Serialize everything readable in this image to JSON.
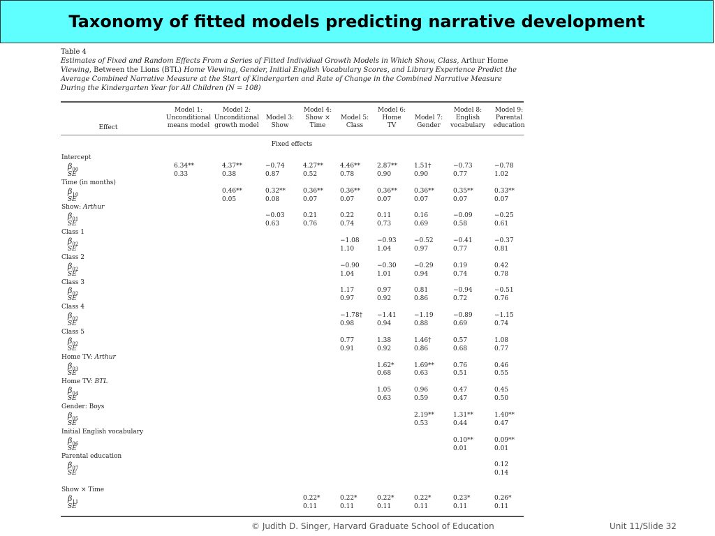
{
  "slide": {
    "title": "Taxonomy of fitted models predicting narrative development",
    "footer_left": "© Judith D. Singer, Harvard Graduate School of Education",
    "footer_right": "Unit 11/Slide 32"
  },
  "table": {
    "label": "Table 4",
    "caption_a": "Estimates of Fixed and Random Effects From a Series of Fitted Individual Growth Models in Which Show, Class,",
    "caption_b": "Arthur Home",
    "caption_c": "Viewing,",
    "caption_d": "Between the Lions (BTL)",
    "caption_e": "Home Viewing, Gender, Initial English Vocabulary Scores, and Library Experience Predict the",
    "caption_f": "Average Combined Narrative Measure at the Start of Kindergarten and Rate of Change in the Combined Narrative Measure During",
    "caption_g": "the Kindergarten Year for All Children (N = 108)",
    "effect_header": "Effect",
    "section": "Fixed effects",
    "models": [
      {
        "l1": "Model 1:",
        "l2": "Unconditional",
        "l3": "means model"
      },
      {
        "l1": "Model 2:",
        "l2": "Unconditional",
        "l3": "growth model"
      },
      {
        "l1": "",
        "l2": "Model 3:",
        "l3": "Show"
      },
      {
        "l1": "Model 4:",
        "l2": "Show ×",
        "l3": "Time"
      },
      {
        "l1": "",
        "l2": "Model 5:",
        "l3": "Class"
      },
      {
        "l1": "Model 6:",
        "l2": "Home",
        "l3": "TV"
      },
      {
        "l1": "",
        "l2": "Model 7:",
        "l3": "Gender"
      },
      {
        "l1": "Model 8:",
        "l2": "English",
        "l3": "vocabulary"
      },
      {
        "l1": "Model 9:",
        "l2": "Parental",
        "l3": "education"
      }
    ],
    "rows": [
      {
        "kind": "group",
        "label": "Intercept",
        "pre": "",
        "em": ""
      },
      {
        "kind": "beta",
        "label": "β",
        "sub": "00",
        "cells": [
          "6.34**",
          "4.37**",
          "−0.74",
          "4.27**",
          "4.46**",
          "2.87**",
          "1.51†",
          "−0.73",
          "−0.78"
        ]
      },
      {
        "kind": "se",
        "label": "SE",
        "cells": [
          "0.33",
          "0.38",
          "0.87",
          "0.52",
          "0.78",
          "0.90",
          "0.90",
          "0.77",
          "1.02"
        ]
      },
      {
        "kind": "group",
        "label": "Time (in months)",
        "pre": "",
        "em": ""
      },
      {
        "kind": "beta",
        "label": "β",
        "sub": "10",
        "cells": [
          "",
          "0.46**",
          "0.32**",
          "0.36**",
          "0.36**",
          "0.36**",
          "0.36**",
          "0.35**",
          "0.33**"
        ]
      },
      {
        "kind": "se",
        "label": "SE",
        "cells": [
          "",
          "0.05",
          "0.08",
          "0.07",
          "0.07",
          "0.07",
          "0.07",
          "0.07",
          "0.07"
        ]
      },
      {
        "kind": "group",
        "label": "",
        "pre": "Show: ",
        "em": "Arthur"
      },
      {
        "kind": "beta",
        "label": "β",
        "sub": "01",
        "cells": [
          "",
          "",
          "−0.03",
          "0.21",
          "0.22",
          "0.11",
          "0.16",
          "−0.09",
          "−0.25"
        ]
      },
      {
        "kind": "se",
        "label": "SE",
        "cells": [
          "",
          "",
          "0.63",
          "0.76",
          "0.74",
          "0.73",
          "0.69",
          "0.58",
          "0.61"
        ]
      },
      {
        "kind": "group",
        "label": "Class 1",
        "pre": "",
        "em": ""
      },
      {
        "kind": "beta",
        "label": "β",
        "sub": "02",
        "cells": [
          "",
          "",
          "",
          "",
          "−1.08",
          "−0.93",
          "−0.52",
          "−0.41",
          "−0.37"
        ]
      },
      {
        "kind": "se",
        "label": "SE",
        "cells": [
          "",
          "",
          "",
          "",
          "1.10",
          "1.04",
          "0.97",
          "0.77",
          "0.81"
        ]
      },
      {
        "kind": "group",
        "label": "Class 2",
        "pre": "",
        "em": ""
      },
      {
        "kind": "beta",
        "label": "β",
        "sub": "02",
        "cells": [
          "",
          "",
          "",
          "",
          "−0.90",
          "−0.30",
          "−0.29",
          "0.19",
          "0.42"
        ]
      },
      {
        "kind": "se",
        "label": "SE",
        "cells": [
          "",
          "",
          "",
          "",
          "1.04",
          "1.01",
          "0.94",
          "0.74",
          "0.78"
        ]
      },
      {
        "kind": "group",
        "label": "Class 3",
        "pre": "",
        "em": ""
      },
      {
        "kind": "beta",
        "label": "β",
        "sub": "02",
        "cells": [
          "",
          "",
          "",
          "",
          "1.17",
          "0.97",
          "0.81",
          "−0.94",
          "−0.51"
        ]
      },
      {
        "kind": "se",
        "label": "SE",
        "cells": [
          "",
          "",
          "",
          "",
          "0.97",
          "0.92",
          "0.86",
          "0.72",
          "0.76"
        ]
      },
      {
        "kind": "group",
        "label": "Class 4",
        "pre": "",
        "em": ""
      },
      {
        "kind": "beta",
        "label": "β",
        "sub": "02",
        "cells": [
          "",
          "",
          "",
          "",
          "−1.78†",
          "−1.41",
          "−1.19",
          "−0.89",
          "−1.15"
        ]
      },
      {
        "kind": "se",
        "label": "SE",
        "cells": [
          "",
          "",
          "",
          "",
          "0.98",
          "0.94",
          "0.88",
          "0.69",
          "0.74"
        ]
      },
      {
        "kind": "group",
        "label": "Class 5",
        "pre": "",
        "em": ""
      },
      {
        "kind": "beta",
        "label": "β",
        "sub": "02",
        "cells": [
          "",
          "",
          "",
          "",
          "0.77",
          "1.38",
          "1.46†",
          "0.57",
          "1.08"
        ]
      },
      {
        "kind": "se",
        "label": "SE",
        "cells": [
          "",
          "",
          "",
          "",
          "0.91",
          "0.92",
          "0.86",
          "0.68",
          "0.77"
        ]
      },
      {
        "kind": "group",
        "label": "",
        "pre": "Home TV: ",
        "em": "Arthur"
      },
      {
        "kind": "beta",
        "label": "β",
        "sub": "03",
        "cells": [
          "",
          "",
          "",
          "",
          "",
          "1.62*",
          "1.69**",
          "0.76",
          "0.46"
        ]
      },
      {
        "kind": "se",
        "label": "SE",
        "cells": [
          "",
          "",
          "",
          "",
          "",
          "0.68",
          "0.63",
          "0.51",
          "0.55"
        ]
      },
      {
        "kind": "group",
        "label": "",
        "pre": "Home TV: ",
        "em": "BTL"
      },
      {
        "kind": "beta",
        "label": "β",
        "sub": "04",
        "cells": [
          "",
          "",
          "",
          "",
          "",
          "1.05",
          "0.96",
          "0.47",
          "0.45"
        ]
      },
      {
        "kind": "se",
        "label": "SE",
        "cells": [
          "",
          "",
          "",
          "",
          "",
          "0.63",
          "0.59",
          "0.47",
          "0.50"
        ]
      },
      {
        "kind": "group",
        "label": "Gender: Boys",
        "pre": "",
        "em": ""
      },
      {
        "kind": "beta",
        "label": "β",
        "sub": "05",
        "cells": [
          "",
          "",
          "",
          "",
          "",
          "",
          "2.19**",
          "1.31**",
          "1.40**"
        ]
      },
      {
        "kind": "se",
        "label": "SE",
        "cells": [
          "",
          "",
          "",
          "",
          "",
          "",
          "0.53",
          "0.44",
          "0.47"
        ]
      },
      {
        "kind": "group",
        "label": "Initial English vocabulary",
        "pre": "",
        "em": ""
      },
      {
        "kind": "beta",
        "label": "β",
        "sub": "06",
        "cells": [
          "",
          "",
          "",
          "",
          "",
          "",
          "",
          "0.10**",
          "0.09**"
        ]
      },
      {
        "kind": "se",
        "label": "SE",
        "cells": [
          "",
          "",
          "",
          "",
          "",
          "",
          "",
          "0.01",
          "0.01"
        ]
      },
      {
        "kind": "group",
        "label": "Parental education",
        "pre": "",
        "em": ""
      },
      {
        "kind": "beta",
        "label": "β",
        "sub": "07",
        "cells": [
          "",
          "",
          "",
          "",
          "",
          "",
          "",
          "",
          "0.12"
        ]
      },
      {
        "kind": "se",
        "label": "SE",
        "cells": [
          "",
          "",
          "",
          "",
          "",
          "",
          "",
          "",
          "0.14"
        ]
      },
      {
        "kind": "gap"
      },
      {
        "kind": "group",
        "label": "Show × Time",
        "pre": "",
        "em": ""
      },
      {
        "kind": "beta",
        "label": "β",
        "sub": "11",
        "cells": [
          "",
          "",
          "",
          "0.22*",
          "0.22*",
          "0.22*",
          "0.22*",
          "0.23*",
          "0.26*"
        ]
      },
      {
        "kind": "se",
        "label": "SE",
        "cells": [
          "",
          "",
          "",
          "0.11",
          "0.11",
          "0.11",
          "0.11",
          "0.11",
          "0.11"
        ]
      }
    ]
  }
}
